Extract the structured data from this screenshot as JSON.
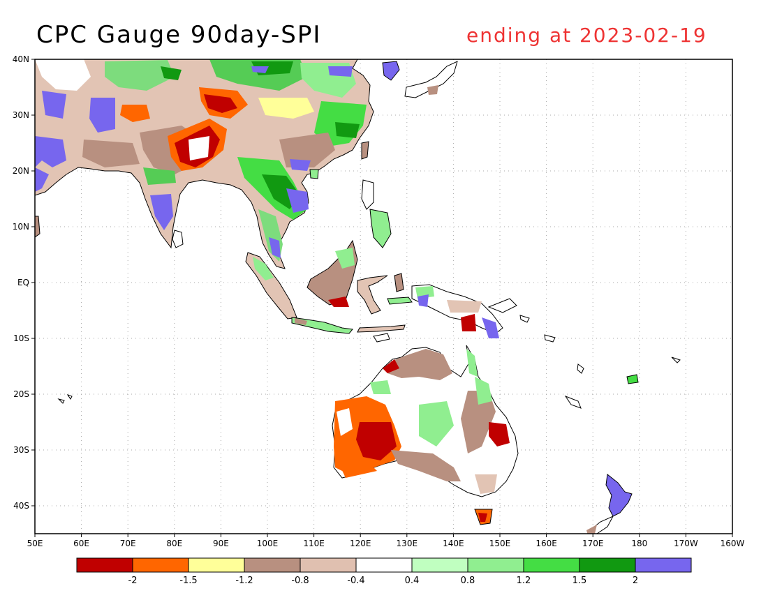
{
  "title": "CPC Gauge 90day-SPI",
  "subtitle": "ending at 2023-02-19",
  "colors": {
    "title": "#000000",
    "subtitle": "#ee3333",
    "land_outline": "#000000",
    "grid": "#aaaaaa"
  },
  "map": {
    "projection": "equirectangular",
    "lon_range": [
      50,
      200
    ],
    "lat_range": [
      -45,
      40
    ],
    "lon_ticks": [
      {
        "value": 50,
        "label": "50E"
      },
      {
        "value": 60,
        "label": "60E"
      },
      {
        "value": 70,
        "label": "70E"
      },
      {
        "value": 80,
        "label": "80E"
      },
      {
        "value": 90,
        "label": "90E"
      },
      {
        "value": 100,
        "label": "100E"
      },
      {
        "value": 110,
        "label": "110E"
      },
      {
        "value": 120,
        "label": "120E"
      },
      {
        "value": 130,
        "label": "130E"
      },
      {
        "value": 140,
        "label": "140E"
      },
      {
        "value": 150,
        "label": "150E"
      },
      {
        "value": 160,
        "label": "160E"
      },
      {
        "value": 170,
        "label": "170E"
      },
      {
        "value": 180,
        "label": "180"
      },
      {
        "value": 190,
        "label": "170W"
      },
      {
        "value": 200,
        "label": "160W"
      }
    ],
    "lat_ticks": [
      {
        "value": 40,
        "label": "40N"
      },
      {
        "value": 30,
        "label": "30N"
      },
      {
        "value": 20,
        "label": "20N"
      },
      {
        "value": 10,
        "label": "10N"
      },
      {
        "value": 0,
        "label": "EQ"
      },
      {
        "value": -10,
        "label": "10S"
      },
      {
        "value": -20,
        "label": "20S"
      },
      {
        "value": -30,
        "label": "30S"
      },
      {
        "value": -40,
        "label": "40S"
      }
    ],
    "grid_lons": [
      60,
      70,
      80,
      90,
      100,
      110,
      120,
      130,
      140,
      150,
      160,
      170,
      180,
      190
    ],
    "grid_lats": [
      30,
      20,
      10,
      0,
      -10,
      -20,
      -30,
      -40
    ]
  },
  "legend": {
    "colors": [
      "#c00000",
      "#ff6600",
      "#ffff99",
      "#b89080",
      "#e0c0b0",
      "#ffffff",
      "#c0ffc0",
      "#90ee90",
      "#44dd44",
      "#119911",
      "#7766ee"
    ],
    "labels": [
      "-2",
      "-1.5",
      "-1.2",
      "-0.8",
      "-0.4",
      "0.4",
      "0.8",
      "1.2",
      "1.5",
      "2"
    ]
  }
}
